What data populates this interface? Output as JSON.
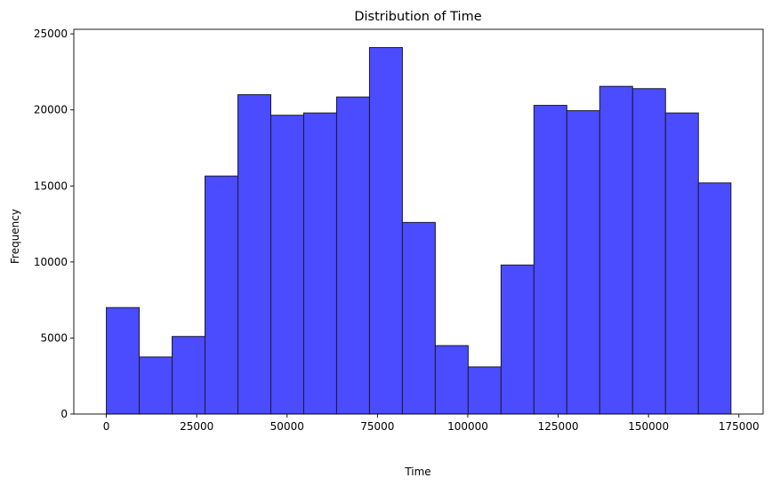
{
  "chart_data": {
    "type": "bar",
    "title": "Distribution of Time",
    "xlabel": "Time",
    "ylabel": "Frequency",
    "xlim": [
      -9000,
      181700
    ],
    "ylim": [
      0,
      25300
    ],
    "xticks": [
      0,
      25000,
      50000,
      75000,
      100000,
      125000,
      150000,
      175000
    ],
    "yticks": [
      0,
      5000,
      10000,
      15000,
      20000,
      25000
    ],
    "bin_edges": [
      0,
      9100,
      18200,
      27300,
      36400,
      45500,
      54600,
      63700,
      72800,
      81900,
      91000,
      100100,
      109200,
      118300,
      127400,
      136500,
      145600,
      154700,
      163800,
      172800
    ],
    "values": [
      7000,
      3750,
      5100,
      15650,
      21000,
      19650,
      19800,
      20850,
      24100,
      12600,
      4500,
      3100,
      9800,
      20300,
      19950,
      21550,
      21400,
      19800,
      15200
    ],
    "bar_color": "#4b4bff",
    "edge_color": "#1a1a33",
    "grid": false,
    "legend": "none"
  }
}
